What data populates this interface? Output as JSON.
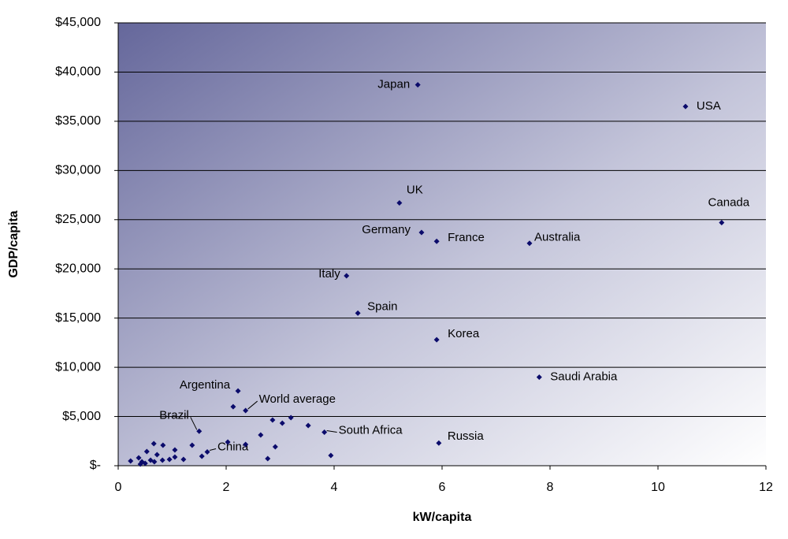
{
  "chart_data": {
    "type": "scatter",
    "x_label": "kW/capita",
    "y_label": "GDP/capita",
    "color": "#0b0b6b",
    "xlim": [
      0,
      12
    ],
    "xticks": [
      0,
      2,
      4,
      6,
      8,
      10,
      12
    ],
    "ylim": [
      0,
      45000
    ],
    "yticks": [
      {
        "value": 0,
        "label": "$-"
      },
      {
        "value": 5000,
        "label": "$5,000"
      },
      {
        "value": 10000,
        "label": "$10,000"
      },
      {
        "value": 15000,
        "label": "$15,000"
      },
      {
        "value": 20000,
        "label": "$20,000"
      },
      {
        "value": 25000,
        "label": "$25,000"
      },
      {
        "value": 30000,
        "label": "$30,000"
      },
      {
        "value": 35000,
        "label": "$35,000"
      },
      {
        "value": 40000,
        "label": "$40,000"
      },
      {
        "value": 45000,
        "label": "$45,000"
      }
    ],
    "grid": true,
    "labels": [
      "Japan",
      "USA",
      "UK",
      "Canada",
      "Germany",
      "France",
      "Australia",
      "Italy",
      "Spain",
      "Korea",
      "Saudi Arabia",
      "Argentina",
      "World average",
      "Russia",
      "South Africa",
      "Brazil",
      "China",
      null,
      null,
      null,
      null,
      null,
      null,
      null,
      null,
      null,
      null,
      null,
      null,
      null,
      null,
      null,
      null,
      null,
      null,
      null,
      null,
      null,
      null,
      null,
      null,
      null,
      null,
      null,
      null,
      null
    ],
    "x": [
      5.55,
      10.51,
      5.21,
      11.18,
      5.62,
      5.9,
      7.62,
      4.23,
      4.44,
      5.9,
      7.8,
      2.22,
      2.36,
      5.94,
      3.82,
      1.5,
      1.65,
      2.13,
      2.86,
      3.04,
      3.2,
      3.52,
      2.64,
      2.03,
      2.36,
      2.91,
      2.77,
      3.94,
      1.37,
      1.55,
      0.66,
      0.83,
      0.53,
      0.72,
      1.05,
      1.05,
      0.82,
      1.21,
      0.6,
      0.38,
      0.23,
      0.44,
      0.5,
      0.41,
      0.67,
      0.95
    ],
    "y": [
      38700,
      36500,
      26700,
      24700,
      23700,
      22800,
      22600,
      19300,
      15500,
      12800,
      9000,
      7600,
      5600,
      2300,
      3400,
      3500,
      1400,
      6000,
      4640,
      4320,
      4880,
      4080,
      3120,
      2400,
      2160,
      1920,
      720,
      1040,
      2080,
      960,
      2240,
      2080,
      1440,
      1120,
      1600,
      880,
      560,
      640,
      560,
      800,
      480,
      400,
      240,
      160,
      400,
      640
    ]
  }
}
